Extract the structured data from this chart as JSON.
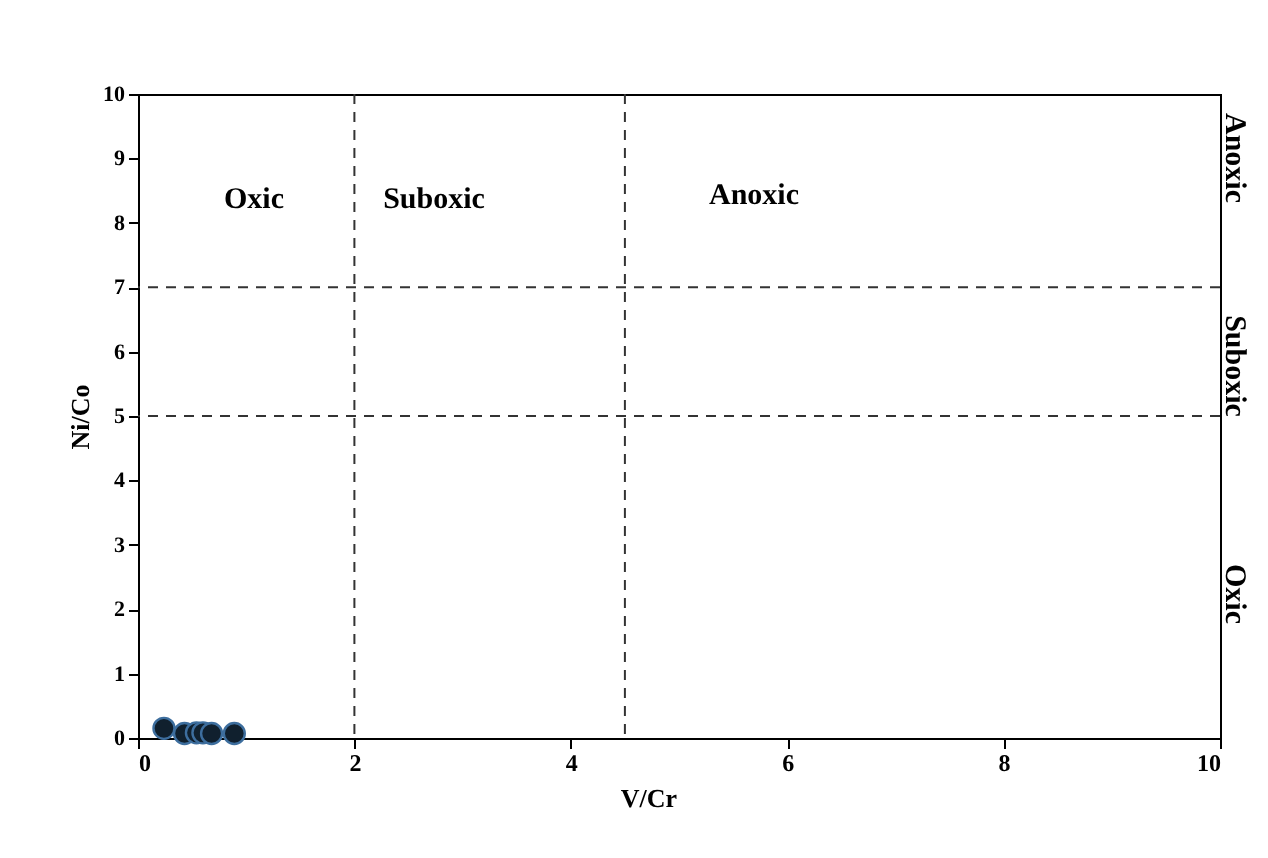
{
  "chart_data": {
    "type": "scatter",
    "xlabel": "V/Cr",
    "ylabel": "Ni/Co",
    "x": [
      0.24,
      0.43,
      0.54,
      0.6,
      0.68,
      0.89
    ],
    "values": [
      0.15,
      0.07,
      0.08,
      0.08,
      0.07,
      0.07
    ],
    "color": "#10202e",
    "marker": "circle",
    "grid": false,
    "xlim": [
      0,
      10
    ],
    "xticks": [
      0,
      2,
      4,
      6,
      8,
      10
    ],
    "ylim": [
      0,
      10
    ],
    "yticks": [
      0,
      1,
      2,
      3,
      4,
      5,
      6,
      7,
      8,
      9,
      10
    ],
    "ref_lines": [
      {
        "axis": "x",
        "value": 2,
        "line_style": "dashed"
      },
      {
        "axis": "x",
        "value": 4.5,
        "line_style": "dashed"
      },
      {
        "axis": "y",
        "value": 5,
        "line_style": "dashed"
      },
      {
        "axis": "y",
        "value": 7,
        "line_style": "dashed"
      }
    ],
    "annotations": [
      "Oxic",
      "Suboxic",
      "Anoxic",
      "Anoxic",
      "Suboxic",
      "Oxic"
    ]
  }
}
